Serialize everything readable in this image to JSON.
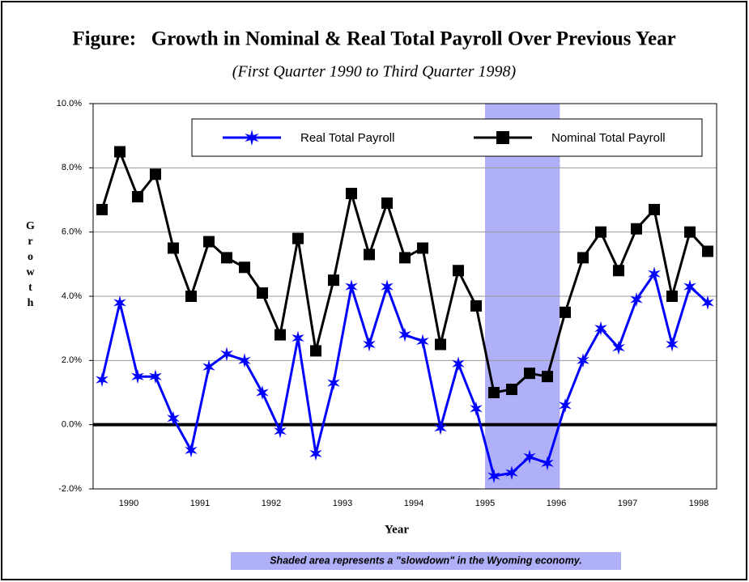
{
  "chart_data": {
    "type": "line",
    "title": "Figure:   Growth in Nominal & Real Total Payroll Over Previous Year",
    "subtitle": "(First Quarter 1990 to Third Quarter 1998)",
    "x_label": "Year",
    "y_label": "Growth",
    "annotation": "Shaded area represents a \"slowdown\" in the Wyoming economy.",
    "categories": [
      null,
      "1990",
      null,
      null,
      null,
      "1991",
      null,
      null,
      null,
      "1992",
      null,
      null,
      null,
      "1993",
      null,
      null,
      null,
      "1994",
      null,
      null,
      null,
      "1995",
      null,
      null,
      null,
      "1996",
      null,
      null,
      null,
      "1997",
      null,
      null,
      null,
      "1998",
      null
    ],
    "series": [
      {
        "name": "Real Total Payroll",
        "color": "#0000ff",
        "marker": "star",
        "values": [
          1.4,
          3.8,
          1.5,
          1.5,
          0.2,
          -0.8,
          1.8,
          2.2,
          2.0,
          1.0,
          -0.2,
          2.7,
          -0.9,
          1.3,
          4.3,
          2.5,
          4.3,
          2.8,
          2.6,
          -0.1,
          1.9,
          0.5,
          -1.6,
          -1.5,
          -1.0,
          -1.2,
          0.6,
          2.0,
          3.0,
          2.4,
          3.9,
          4.7,
          2.5,
          4.3,
          3.8
        ]
      },
      {
        "name": "Nominal Total Payroll",
        "color": "#000000",
        "marker": "square",
        "values": [
          6.7,
          8.5,
          7.1,
          7.8,
          5.5,
          4.0,
          5.7,
          5.2,
          4.9,
          4.1,
          2.8,
          5.8,
          2.3,
          4.5,
          7.2,
          5.3,
          6.9,
          5.2,
          5.5,
          2.5,
          4.8,
          3.7,
          1.0,
          1.1,
          1.6,
          1.5,
          3.5,
          5.2,
          6.0,
          4.8,
          6.1,
          6.7,
          4.0,
          6.0,
          5.4
        ]
      }
    ],
    "ylim": [
      -2,
      10
    ],
    "yticks": [
      {
        "value": -2,
        "label": "-2.0%"
      },
      {
        "value": 0,
        "label": "0.0%"
      },
      {
        "value": 2,
        "label": "2.0%"
      },
      {
        "value": 4,
        "label": "4.0%"
      },
      {
        "value": 6,
        "label": "6.0%"
      },
      {
        "value": 8,
        "label": "8.0%"
      },
      {
        "value": 10,
        "label": "10.0%"
      }
    ],
    "grid": true
  }
}
